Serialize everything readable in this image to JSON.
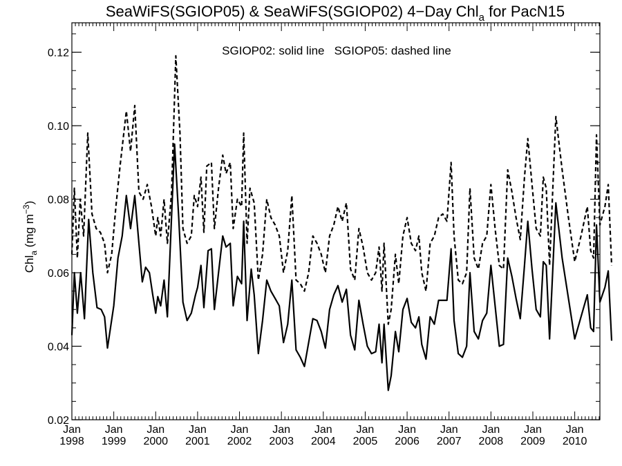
{
  "chart_data": {
    "type": "line",
    "title": {
      "main": "SeaWiFS(SGIOP05) & SeaWiFS(SGIOP02) 4−Day Chl",
      "subscript": "a",
      "suffix": " for PacN15"
    },
    "annotation": "SGIOP02: solid line   SGIOP05: dashed line",
    "ylabel": {
      "main": "Chl",
      "subscript": "a",
      "unit_open": " (mg m",
      "unit_sup": "−3",
      "unit_close": ")"
    },
    "xlim": [
      1998.0,
      2010.6
    ],
    "ylim": [
      0.02,
      0.128
    ],
    "grid": false,
    "yticks": [
      {
        "value": 0.02,
        "label": "0.02"
      },
      {
        "value": 0.04,
        "label": "0.04"
      },
      {
        "value": 0.06,
        "label": "0.06"
      },
      {
        "value": 0.08,
        "label": "0.08"
      },
      {
        "value": 0.1,
        "label": "0.10"
      },
      {
        "value": 0.12,
        "label": "0.12"
      }
    ],
    "xticks": [
      {
        "value": 1998,
        "month": "Jan",
        "year": "1998"
      },
      {
        "value": 1999,
        "month": "Jan",
        "year": "1999"
      },
      {
        "value": 2000,
        "month": "Jan",
        "year": "2000"
      },
      {
        "value": 2001,
        "month": "Jan",
        "year": "2001"
      },
      {
        "value": 2002,
        "month": "Jan",
        "year": "2002"
      },
      {
        "value": 2003,
        "month": "Jan",
        "year": "2003"
      },
      {
        "value": 2004,
        "month": "Jan",
        "year": "2004"
      },
      {
        "value": 2005,
        "month": "Jan",
        "year": "2005"
      },
      {
        "value": 2006,
        "month": "Jan",
        "year": "2006"
      },
      {
        "value": 2007,
        "month": "Jan",
        "year": "2007"
      },
      {
        "value": 2008,
        "month": "Jan",
        "year": "2008"
      },
      {
        "value": 2009,
        "month": "Jan",
        "year": "2009"
      },
      {
        "value": 2010,
        "month": "Jan",
        "year": "2010"
      }
    ],
    "series": [
      {
        "name": "SGIOP02",
        "style": "solid",
        "color": "#000000",
        "points": [
          [
            1998.0,
            0.043
          ],
          [
            1998.06,
            0.06
          ],
          [
            1998.13,
            0.049
          ],
          [
            1998.21,
            0.06
          ],
          [
            1998.3,
            0.0475
          ],
          [
            1998.4,
            0.0745
          ],
          [
            1998.5,
            0.06
          ],
          [
            1998.6,
            0.0505
          ],
          [
            1998.7,
            0.05
          ],
          [
            1998.78,
            0.048
          ],
          [
            1998.85,
            0.0395
          ],
          [
            1999.0,
            0.051
          ],
          [
            1999.1,
            0.064
          ],
          [
            1999.2,
            0.07
          ],
          [
            1999.3,
            0.081
          ],
          [
            1999.4,
            0.072
          ],
          [
            1999.5,
            0.081
          ],
          [
            1999.6,
            0.068
          ],
          [
            1999.68,
            0.0575
          ],
          [
            1999.76,
            0.0615
          ],
          [
            1999.85,
            0.06
          ],
          [
            1999.93,
            0.054
          ],
          [
            2000.0,
            0.049
          ],
          [
            2000.05,
            0.0535
          ],
          [
            2000.12,
            0.051
          ],
          [
            2000.2,
            0.058
          ],
          [
            2000.28,
            0.048
          ],
          [
            2000.45,
            0.095
          ],
          [
            2000.55,
            0.075
          ],
          [
            2000.65,
            0.052
          ],
          [
            2000.75,
            0.047
          ],
          [
            2000.85,
            0.049
          ],
          [
            2000.95,
            0.054
          ],
          [
            2001.0,
            0.056
          ],
          [
            2001.08,
            0.062
          ],
          [
            2001.15,
            0.0505
          ],
          [
            2001.25,
            0.066
          ],
          [
            2001.33,
            0.0665
          ],
          [
            2001.4,
            0.05
          ],
          [
            2001.5,
            0.06
          ],
          [
            2001.6,
            0.07
          ],
          [
            2001.68,
            0.067
          ],
          [
            2001.78,
            0.068
          ],
          [
            2001.85,
            0.051
          ],
          [
            2001.95,
            0.059
          ],
          [
            2002.05,
            0.057
          ],
          [
            2002.1,
            0.074
          ],
          [
            2002.18,
            0.047
          ],
          [
            2002.28,
            0.061
          ],
          [
            2002.35,
            0.054
          ],
          [
            2002.45,
            0.038
          ],
          [
            2002.55,
            0.047
          ],
          [
            2002.65,
            0.058
          ],
          [
            2002.75,
            0.055
          ],
          [
            2002.85,
            0.053
          ],
          [
            2002.95,
            0.051
          ],
          [
            2003.05,
            0.041
          ],
          [
            2003.15,
            0.046
          ],
          [
            2003.25,
            0.058
          ],
          [
            2003.35,
            0.039
          ],
          [
            2003.45,
            0.037
          ],
          [
            2003.55,
            0.0345
          ],
          [
            2003.65,
            0.041
          ],
          [
            2003.75,
            0.0475
          ],
          [
            2003.85,
            0.047
          ],
          [
            2003.95,
            0.044
          ],
          [
            2004.05,
            0.0395
          ],
          [
            2004.15,
            0.05
          ],
          [
            2004.25,
            0.054
          ],
          [
            2004.35,
            0.0565
          ],
          [
            2004.45,
            0.052
          ],
          [
            2004.55,
            0.0555
          ],
          [
            2004.65,
            0.043
          ],
          [
            2004.75,
            0.039
          ],
          [
            2004.85,
            0.0525
          ],
          [
            2004.95,
            0.046
          ],
          [
            2005.05,
            0.04
          ],
          [
            2005.15,
            0.038
          ],
          [
            2005.25,
            0.0385
          ],
          [
            2005.33,
            0.046
          ],
          [
            2005.4,
            0.0355
          ],
          [
            2005.45,
            0.046
          ],
          [
            2005.55,
            0.028
          ],
          [
            2005.62,
            0.032
          ],
          [
            2005.72,
            0.044
          ],
          [
            2005.8,
            0.0385
          ],
          [
            2005.9,
            0.05
          ],
          [
            2006.0,
            0.053
          ],
          [
            2006.1,
            0.0465
          ],
          [
            2006.2,
            0.045
          ],
          [
            2006.28,
            0.048
          ],
          [
            2006.35,
            0.0405
          ],
          [
            2006.45,
            0.0365
          ],
          [
            2006.55,
            0.048
          ],
          [
            2006.65,
            0.046
          ],
          [
            2006.75,
            0.0525
          ],
          [
            2006.85,
            0.0525
          ],
          [
            2006.95,
            0.0525
          ],
          [
            2007.05,
            0.0665
          ],
          [
            2007.12,
            0.047
          ],
          [
            2007.22,
            0.038
          ],
          [
            2007.32,
            0.037
          ],
          [
            2007.42,
            0.04
          ],
          [
            2007.5,
            0.06
          ],
          [
            2007.6,
            0.044
          ],
          [
            2007.7,
            0.042
          ],
          [
            2007.8,
            0.047
          ],
          [
            2007.9,
            0.049
          ],
          [
            2008.0,
            0.062
          ],
          [
            2008.1,
            0.051
          ],
          [
            2008.2,
            0.04
          ],
          [
            2008.3,
            0.0405
          ],
          [
            2008.4,
            0.064
          ],
          [
            2008.5,
            0.059
          ],
          [
            2008.6,
            0.053
          ],
          [
            2008.7,
            0.0475
          ],
          [
            2008.8,
            0.062
          ],
          [
            2008.88,
            0.074
          ],
          [
            2008.98,
            0.061
          ],
          [
            2009.08,
            0.05
          ],
          [
            2009.18,
            0.048
          ],
          [
            2009.25,
            0.063
          ],
          [
            2009.32,
            0.062
          ],
          [
            2009.4,
            0.042
          ],
          [
            2009.55,
            0.079
          ],
          [
            2009.7,
            0.064
          ],
          [
            2009.85,
            0.053
          ],
          [
            2010.0,
            0.042
          ],
          [
            2010.15,
            0.048
          ],
          [
            2010.3,
            0.054
          ],
          [
            2010.38,
            0.045
          ],
          [
            2010.45,
            0.044
          ],
          [
            2010.52,
            0.073
          ],
          [
            2010.6,
            0.052
          ],
          [
            2010.72,
            0.056
          ],
          [
            2010.8,
            0.0605
          ],
          [
            2010.88,
            0.0415
          ]
        ]
      },
      {
        "name": "SGIOP05",
        "style": "dashed",
        "color": "#000000",
        "points": [
          [
            1998.0,
            0.065
          ],
          [
            1998.06,
            0.083
          ],
          [
            1998.13,
            0.064
          ],
          [
            1998.2,
            0.08
          ],
          [
            1998.28,
            0.07
          ],
          [
            1998.38,
            0.098
          ],
          [
            1998.48,
            0.076
          ],
          [
            1998.58,
            0.072
          ],
          [
            1998.68,
            0.071
          ],
          [
            1998.78,
            0.068
          ],
          [
            1998.85,
            0.06
          ],
          [
            1998.95,
            0.065
          ],
          [
            1999.05,
            0.078
          ],
          [
            1999.15,
            0.089
          ],
          [
            1999.3,
            0.104
          ],
          [
            1999.4,
            0.093
          ],
          [
            1999.5,
            0.1055
          ],
          [
            1999.6,
            0.082
          ],
          [
            1999.7,
            0.08
          ],
          [
            1999.8,
            0.084
          ],
          [
            1999.9,
            0.078
          ],
          [
            2000.0,
            0.07
          ],
          [
            2000.05,
            0.075
          ],
          [
            2000.12,
            0.07
          ],
          [
            2000.2,
            0.08
          ],
          [
            2000.28,
            0.068
          ],
          [
            2000.38,
            0.082
          ],
          [
            2000.48,
            0.119
          ],
          [
            2000.58,
            0.098
          ],
          [
            2000.65,
            0.072
          ],
          [
            2000.75,
            0.068
          ],
          [
            2000.85,
            0.07
          ],
          [
            2000.92,
            0.081
          ],
          [
            2001.0,
            0.078
          ],
          [
            2001.08,
            0.086
          ],
          [
            2001.15,
            0.071
          ],
          [
            2001.22,
            0.089
          ],
          [
            2001.33,
            0.09
          ],
          [
            2001.4,
            0.072
          ],
          [
            2001.5,
            0.083
          ],
          [
            2001.6,
            0.092
          ],
          [
            2001.68,
            0.087
          ],
          [
            2001.78,
            0.09
          ],
          [
            2001.85,
            0.072
          ],
          [
            2001.95,
            0.08
          ],
          [
            2002.05,
            0.078
          ],
          [
            2002.1,
            0.098
          ],
          [
            2002.18,
            0.068
          ],
          [
            2002.25,
            0.083
          ],
          [
            2002.35,
            0.079
          ],
          [
            2002.45,
            0.058
          ],
          [
            2002.55,
            0.065
          ],
          [
            2002.65,
            0.08
          ],
          [
            2002.75,
            0.075
          ],
          [
            2002.85,
            0.073
          ],
          [
            2002.95,
            0.07
          ],
          [
            2003.05,
            0.06
          ],
          [
            2003.15,
            0.066
          ],
          [
            2003.25,
            0.081
          ],
          [
            2003.35,
            0.058
          ],
          [
            2003.45,
            0.057
          ],
          [
            2003.55,
            0.055
          ],
          [
            2003.65,
            0.06
          ],
          [
            2003.75,
            0.07
          ],
          [
            2003.85,
            0.068
          ],
          [
            2003.95,
            0.065
          ],
          [
            2004.05,
            0.06
          ],
          [
            2004.15,
            0.07
          ],
          [
            2004.25,
            0.073
          ],
          [
            2004.35,
            0.078
          ],
          [
            2004.45,
            0.074
          ],
          [
            2004.55,
            0.079
          ],
          [
            2004.65,
            0.061
          ],
          [
            2004.75,
            0.058
          ],
          [
            2004.85,
            0.072
          ],
          [
            2004.95,
            0.067
          ],
          [
            2005.05,
            0.06
          ],
          [
            2005.15,
            0.058
          ],
          [
            2005.25,
            0.06
          ],
          [
            2005.33,
            0.067
          ],
          [
            2005.4,
            0.055
          ],
          [
            2005.45,
            0.068
          ],
          [
            2005.55,
            0.046
          ],
          [
            2005.62,
            0.05
          ],
          [
            2005.72,
            0.065
          ],
          [
            2005.8,
            0.057
          ],
          [
            2005.9,
            0.07
          ],
          [
            2006.0,
            0.075
          ],
          [
            2006.1,
            0.068
          ],
          [
            2006.2,
            0.066
          ],
          [
            2006.28,
            0.07
          ],
          [
            2006.35,
            0.06
          ],
          [
            2006.45,
            0.055
          ],
          [
            2006.55,
            0.068
          ],
          [
            2006.65,
            0.07
          ],
          [
            2006.75,
            0.075
          ],
          [
            2006.85,
            0.076
          ],
          [
            2006.95,
            0.074
          ],
          [
            2007.05,
            0.09
          ],
          [
            2007.12,
            0.07
          ],
          [
            2007.22,
            0.058
          ],
          [
            2007.32,
            0.057
          ],
          [
            2007.42,
            0.06
          ],
          [
            2007.5,
            0.083
          ],
          [
            2007.6,
            0.064
          ],
          [
            2007.7,
            0.061
          ],
          [
            2007.8,
            0.068
          ],
          [
            2007.9,
            0.07
          ],
          [
            2008.0,
            0.084
          ],
          [
            2008.1,
            0.072
          ],
          [
            2008.2,
            0.062
          ],
          [
            2008.3,
            0.061
          ],
          [
            2008.4,
            0.088
          ],
          [
            2008.5,
            0.082
          ],
          [
            2008.6,
            0.075
          ],
          [
            2008.7,
            0.069
          ],
          [
            2008.8,
            0.086
          ],
          [
            2008.88,
            0.0965
          ],
          [
            2008.98,
            0.084
          ],
          [
            2009.08,
            0.072
          ],
          [
            2009.18,
            0.07
          ],
          [
            2009.25,
            0.086
          ],
          [
            2009.32,
            0.083
          ],
          [
            2009.4,
            0.062
          ],
          [
            2009.55,
            0.1025
          ],
          [
            2009.7,
            0.088
          ],
          [
            2009.85,
            0.075
          ],
          [
            2010.0,
            0.063
          ],
          [
            2010.15,
            0.07
          ],
          [
            2010.3,
            0.078
          ],
          [
            2010.38,
            0.066
          ],
          [
            2010.45,
            0.064
          ],
          [
            2010.52,
            0.0975
          ],
          [
            2010.6,
            0.073
          ],
          [
            2010.72,
            0.078
          ],
          [
            2010.8,
            0.084
          ],
          [
            2010.88,
            0.062
          ]
        ]
      }
    ]
  }
}
